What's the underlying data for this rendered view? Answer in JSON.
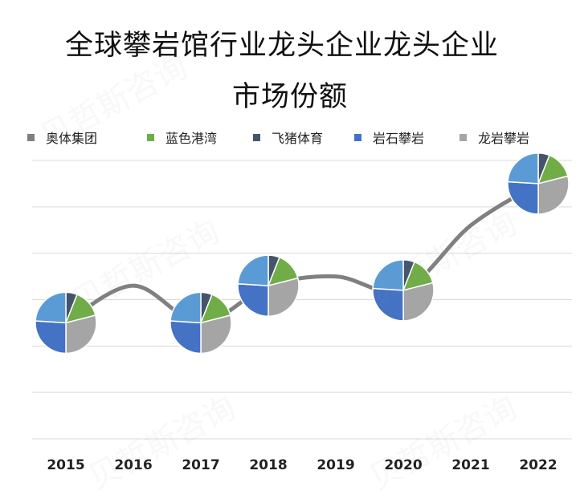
{
  "chart_data": {
    "type": "line-with-pies",
    "title_lines": [
      "全球攀岩馆行业龙头企业龙头企业",
      "市场份额"
    ],
    "categories": [
      "2015",
      "2016",
      "2017",
      "2018",
      "2019",
      "2020",
      "2021",
      "2022"
    ],
    "line_values": [
      2.5,
      3.3,
      2.5,
      3.3,
      3.5,
      3.2,
      4.6,
      5.5
    ],
    "ylim": [
      0,
      6
    ],
    "grid": true,
    "legend_position": "top",
    "series": [
      {
        "name": "奥体集团",
        "color": "#7f7f7f"
      },
      {
        "name": "蓝色港湾",
        "color": "#70ad47"
      },
      {
        "name": "飞猪体育",
        "color": "#44546a"
      },
      {
        "name": "岩石攀岩",
        "color": "#4472c4"
      },
      {
        "name": "龙岩攀岩",
        "color": "#a5a5a5"
      }
    ],
    "pie_years": [
      "2015",
      "2017",
      "2018",
      "2020",
      "2022"
    ],
    "pie_shares": [
      {
        "name": "飞猪体育",
        "value": 6,
        "color": "#44546a"
      },
      {
        "name": "蓝色港湾",
        "value": 15,
        "color": "#70ad47"
      },
      {
        "name": "龙岩攀岩",
        "value": 29,
        "color": "#a5a5a5"
      },
      {
        "name": "岩石攀岩",
        "value": 26,
        "color": "#4472c4"
      },
      {
        "name": "岩石攀岩",
        "value": 24,
        "color": "#5b9bd5"
      }
    ]
  },
  "watermark_text": "贝哲斯咨询"
}
